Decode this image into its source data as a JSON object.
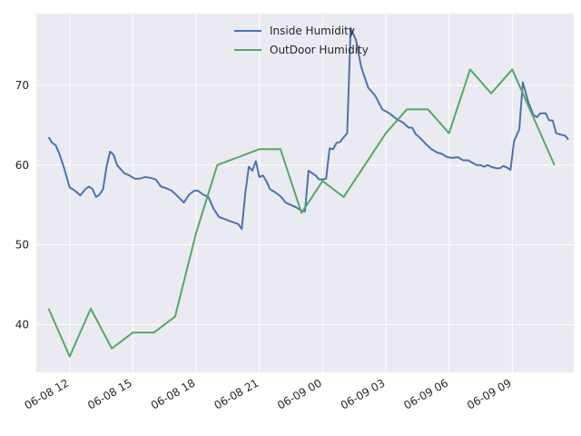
{
  "chart_data": {
    "type": "line",
    "title": "",
    "xlabel": "",
    "ylabel": "",
    "x_axis": {
      "type": "time",
      "range": [
        "2021-06-08 10:25",
        "2021-06-09 11:55"
      ],
      "ticks": [
        {
          "t": "2021-06-08 12:00",
          "label": "06-08 12"
        },
        {
          "t": "2021-06-08 15:00",
          "label": "06-08 15"
        },
        {
          "t": "2021-06-08 18:00",
          "label": "06-08 18"
        },
        {
          "t": "2021-06-08 21:00",
          "label": "06-08 21"
        },
        {
          "t": "2021-06-09 00:00",
          "label": "06-09 00"
        },
        {
          "t": "2021-06-09 03:00",
          "label": "06-09 03"
        },
        {
          "t": "2021-06-09 06:00",
          "label": "06-09 06"
        },
        {
          "t": "2021-06-09 09:00",
          "label": "06-09 09"
        }
      ]
    },
    "y_axis": {
      "range": [
        34,
        79
      ],
      "ticks": [
        40,
        50,
        60,
        70
      ]
    },
    "grid": true,
    "legend": {
      "position": "top-center"
    },
    "series": [
      {
        "name": "Inside Humidity",
        "color": "#4c72b0",
        "points": [
          [
            "2021-06-08 11:00",
            63.5
          ],
          [
            "2021-06-08 11:10",
            62.8
          ],
          [
            "2021-06-08 11:20",
            62.5
          ],
          [
            "2021-06-08 11:30",
            61.5
          ],
          [
            "2021-06-08 11:45",
            59.5
          ],
          [
            "2021-06-08 12:00",
            57.2
          ],
          [
            "2021-06-08 12:15",
            56.8
          ],
          [
            "2021-06-08 12:30",
            56.2
          ],
          [
            "2021-06-08 12:45",
            57.0
          ],
          [
            "2021-06-08 12:55",
            57.3
          ],
          [
            "2021-06-08 13:05",
            57.0
          ],
          [
            "2021-06-08 13:15",
            56.0
          ],
          [
            "2021-06-08 13:25",
            56.3
          ],
          [
            "2021-06-08 13:35",
            57.0
          ],
          [
            "2021-06-08 13:45",
            59.8
          ],
          [
            "2021-06-08 13:55",
            61.7
          ],
          [
            "2021-06-08 14:05",
            61.3
          ],
          [
            "2021-06-08 14:15",
            60.0
          ],
          [
            "2021-06-08 14:35",
            59.0
          ],
          [
            "2021-06-08 14:50",
            58.7
          ],
          [
            "2021-06-08 15:05",
            58.3
          ],
          [
            "2021-06-08 15:20",
            58.3
          ],
          [
            "2021-06-08 15:35",
            58.5
          ],
          [
            "2021-06-08 15:50",
            58.4
          ],
          [
            "2021-06-08 16:05",
            58.2
          ],
          [
            "2021-06-08 16:20",
            57.3
          ],
          [
            "2021-06-08 16:35",
            57.1
          ],
          [
            "2021-06-08 16:50",
            56.8
          ],
          [
            "2021-06-08 17:05",
            56.2
          ],
          [
            "2021-06-08 17:25",
            55.3
          ],
          [
            "2021-06-08 17:40",
            56.3
          ],
          [
            "2021-06-08 17:55",
            56.8
          ],
          [
            "2021-06-08 18:05",
            56.8
          ],
          [
            "2021-06-08 18:20",
            56.3
          ],
          [
            "2021-06-08 18:35",
            56.0
          ],
          [
            "2021-06-08 18:50",
            54.5
          ],
          [
            "2021-06-08 19:05",
            53.5
          ],
          [
            "2021-06-08 19:35",
            53.0
          ],
          [
            "2021-06-08 20:00",
            52.6
          ],
          [
            "2021-06-08 20:10",
            52.0
          ],
          [
            "2021-06-08 20:20",
            56.5
          ],
          [
            "2021-06-08 20:30",
            59.8
          ],
          [
            "2021-06-08 20:40",
            59.3
          ],
          [
            "2021-06-08 20:50",
            60.5
          ],
          [
            "2021-06-08 21:00",
            58.5
          ],
          [
            "2021-06-08 21:10",
            58.7
          ],
          [
            "2021-06-08 21:20",
            58.0
          ],
          [
            "2021-06-08 21:30",
            57.0
          ],
          [
            "2021-06-08 21:45",
            56.6
          ],
          [
            "2021-06-08 22:00",
            56.1
          ],
          [
            "2021-06-08 22:15",
            55.3
          ],
          [
            "2021-06-08 22:30",
            55.0
          ],
          [
            "2021-06-08 22:45",
            54.7
          ],
          [
            "2021-06-08 23:00",
            54.3
          ],
          [
            "2021-06-08 23:10",
            54.2
          ],
          [
            "2021-06-08 23:20",
            59.3
          ],
          [
            "2021-06-08 23:30",
            59.0
          ],
          [
            "2021-06-08 23:40",
            58.7
          ],
          [
            "2021-06-08 23:50",
            58.2
          ],
          [
            "2021-06-09 00:00",
            58.2
          ],
          [
            "2021-06-09 00:10",
            58.3
          ],
          [
            "2021-06-09 00:20",
            62.1
          ],
          [
            "2021-06-09 00:30",
            62.0
          ],
          [
            "2021-06-09 00:40",
            62.8
          ],
          [
            "2021-06-09 00:50",
            62.9
          ],
          [
            "2021-06-09 01:00",
            63.5
          ],
          [
            "2021-06-09 01:10",
            64.0
          ],
          [
            "2021-06-09 01:20",
            77.2
          ],
          [
            "2021-06-09 01:35",
            75.7
          ],
          [
            "2021-06-09 01:50",
            72.3
          ],
          [
            "2021-06-09 02:10",
            69.7
          ],
          [
            "2021-06-09 02:30",
            68.7
          ],
          [
            "2021-06-09 02:50",
            67.0
          ],
          [
            "2021-06-09 03:10",
            66.5
          ],
          [
            "2021-06-09 03:30",
            65.8
          ],
          [
            "2021-06-09 03:50",
            65.3
          ],
          [
            "2021-06-09 04:05",
            64.7
          ],
          [
            "2021-06-09 04:15",
            64.7
          ],
          [
            "2021-06-09 04:25",
            63.9
          ],
          [
            "2021-06-09 04:40",
            63.3
          ],
          [
            "2021-06-09 04:55",
            62.6
          ],
          [
            "2021-06-09 05:10",
            62.0
          ],
          [
            "2021-06-09 05:25",
            61.6
          ],
          [
            "2021-06-09 05:40",
            61.4
          ],
          [
            "2021-06-09 05:55",
            61.0
          ],
          [
            "2021-06-09 06:10",
            60.9
          ],
          [
            "2021-06-09 06:25",
            61.0
          ],
          [
            "2021-06-09 06:40",
            60.6
          ],
          [
            "2021-06-09 06:55",
            60.6
          ],
          [
            "2021-06-09 07:10",
            60.2
          ],
          [
            "2021-06-09 07:20",
            60.0
          ],
          [
            "2021-06-09 07:30",
            60.0
          ],
          [
            "2021-06-09 07:40",
            59.8
          ],
          [
            "2021-06-09 07:50",
            60.0
          ],
          [
            "2021-06-09 08:00",
            59.8
          ],
          [
            "2021-06-09 08:15",
            59.6
          ],
          [
            "2021-06-09 08:25",
            59.6
          ],
          [
            "2021-06-09 08:35",
            59.9
          ],
          [
            "2021-06-09 08:45",
            59.7
          ],
          [
            "2021-06-09 08:55",
            59.4
          ],
          [
            "2021-06-09 09:05",
            63.0
          ],
          [
            "2021-06-09 09:20",
            64.5
          ],
          [
            "2021-06-09 09:30",
            70.4
          ],
          [
            "2021-06-09 09:45",
            68.0
          ],
          [
            "2021-06-09 10:00",
            66.3
          ],
          [
            "2021-06-09 10:10",
            66.0
          ],
          [
            "2021-06-09 10:20",
            66.5
          ],
          [
            "2021-06-09 10:35",
            66.5
          ],
          [
            "2021-06-09 10:45",
            65.6
          ],
          [
            "2021-06-09 10:55",
            65.6
          ],
          [
            "2021-06-09 11:05",
            64.0
          ],
          [
            "2021-06-09 11:20",
            63.8
          ],
          [
            "2021-06-09 11:30",
            63.7
          ],
          [
            "2021-06-09 11:40",
            63.2
          ]
        ]
      },
      {
        "name": "OutDoor Humidity",
        "color": "#55a868",
        "points": [
          [
            "2021-06-08 11:00",
            42
          ],
          [
            "2021-06-08 12:00",
            36
          ],
          [
            "2021-06-08 13:00",
            42
          ],
          [
            "2021-06-08 14:00",
            37
          ],
          [
            "2021-06-08 15:00",
            39
          ],
          [
            "2021-06-08 16:00",
            39
          ],
          [
            "2021-06-08 17:00",
            41
          ],
          [
            "2021-06-08 18:00",
            51.5
          ],
          [
            "2021-06-08 19:00",
            60
          ],
          [
            "2021-06-08 20:00",
            61
          ],
          [
            "2021-06-08 21:00",
            62
          ],
          [
            "2021-06-08 22:00",
            62
          ],
          [
            "2021-06-08 23:00",
            54
          ],
          [
            "2021-06-09 00:00",
            58
          ],
          [
            "2021-06-09 01:00",
            56
          ],
          [
            "2021-06-09 02:00",
            60
          ],
          [
            "2021-06-09 03:00",
            64
          ],
          [
            "2021-06-09 04:00",
            67
          ],
          [
            "2021-06-09 05:00",
            67
          ],
          [
            "2021-06-09 06:00",
            64
          ],
          [
            "2021-06-09 07:00",
            72
          ],
          [
            "2021-06-09 08:00",
            69
          ],
          [
            "2021-06-09 09:00",
            72
          ],
          [
            "2021-06-09 10:00",
            66
          ],
          [
            "2021-06-09 11:00",
            60
          ]
        ]
      }
    ]
  }
}
